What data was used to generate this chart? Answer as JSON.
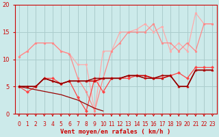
{
  "background_color": "#cceaea",
  "grid_color": "#aacccc",
  "xlabel": "Vent moyen/en rafales ( km/h )",
  "xlabel_color": "#cc0000",
  "tick_color": "#cc0000",
  "xlim": [
    -0.5,
    23.5
  ],
  "ylim": [
    0,
    20
  ],
  "yticks": [
    0,
    5,
    10,
    15,
    20
  ],
  "xticks": [
    0,
    1,
    2,
    3,
    4,
    5,
    6,
    7,
    8,
    9,
    10,
    11,
    12,
    13,
    14,
    15,
    16,
    17,
    18,
    19,
    20,
    21,
    22,
    23
  ],
  "series": [
    {
      "x": [
        0,
        1,
        2,
        3,
        4,
        5,
        6,
        7,
        8,
        9,
        10,
        11,
        12,
        13,
        14,
        15,
        16,
        17,
        18,
        19,
        20,
        21,
        22,
        23
      ],
      "y": [
        10.5,
        11.5,
        13,
        13,
        13,
        11.5,
        11.0,
        9.0,
        9.0,
        0.5,
        11.5,
        11.5,
        15.0,
        15.0,
        15.5,
        16.5,
        15.0,
        16.0,
        11.5,
        13.0,
        11.5,
        18.5,
        16.5,
        16.5
      ],
      "color": "#ffaaaa",
      "lw": 0.9,
      "marker": "o",
      "ms": 1.8,
      "zorder": 2
    },
    {
      "x": [
        0,
        1,
        2,
        3,
        4,
        5,
        6,
        7,
        8,
        9,
        10,
        11,
        12,
        13,
        14,
        15,
        16,
        17,
        18,
        19,
        20,
        21,
        22,
        23
      ],
      "y": [
        10.5,
        11.5,
        13,
        13,
        13,
        11.5,
        11.0,
        6.5,
        4.0,
        0.5,
        6.5,
        11.5,
        13.0,
        15.0,
        15.0,
        15.0,
        16.5,
        13.0,
        13.0,
        11.5,
        13.0,
        11.5,
        16.5,
        16.5
      ],
      "color": "#ff8888",
      "lw": 0.9,
      "marker": "o",
      "ms": 1.8,
      "zorder": 3
    },
    {
      "x": [
        0,
        1,
        2,
        3,
        4,
        5,
        6,
        7,
        8,
        9,
        10,
        11,
        12,
        13,
        14,
        15,
        16,
        17,
        18,
        19,
        20,
        21,
        22,
        23
      ],
      "y": [
        5.0,
        4.0,
        5.0,
        6.5,
        6.5,
        5.5,
        6.0,
        3.0,
        0.5,
        6.5,
        4.0,
        6.5,
        6.5,
        6.5,
        7.0,
        6.5,
        6.5,
        7.0,
        7.0,
        7.5,
        6.5,
        8.5,
        8.5,
        8.5
      ],
      "color": "#ff4444",
      "lw": 0.9,
      "marker": "D",
      "ms": 2.0,
      "zorder": 4
    },
    {
      "x": [
        0,
        1,
        2,
        3,
        4,
        5,
        6,
        7,
        8,
        9,
        10,
        11,
        12,
        13,
        14,
        15,
        16,
        17,
        18,
        19,
        20,
        21,
        22,
        23
      ],
      "y": [
        5.0,
        5.0,
        5.0,
        6.5,
        6.0,
        5.5,
        6.0,
        6.0,
        6.0,
        6.0,
        6.5,
        6.5,
        6.5,
        7.0,
        7.0,
        7.0,
        6.5,
        6.5,
        7.0,
        5.0,
        5.0,
        8.0,
        8.0,
        8.0
      ],
      "color": "#cc0000",
      "lw": 1.2,
      "marker": "^",
      "ms": 2.2,
      "zorder": 5
    },
    {
      "x": [
        0,
        1,
        2,
        3,
        4,
        5,
        6,
        7,
        8,
        9,
        10,
        11,
        12,
        13,
        14,
        15,
        16,
        17,
        18,
        19,
        20,
        21,
        22,
        23
      ],
      "y": [
        5.0,
        5.0,
        5.0,
        6.5,
        6.0,
        5.5,
        6.0,
        6.0,
        6.0,
        6.5,
        6.5,
        6.5,
        6.5,
        7.0,
        7.0,
        6.5,
        6.5,
        7.0,
        7.0,
        5.0,
        5.0,
        8.0,
        8.0,
        8.0
      ],
      "color": "#880000",
      "lw": 1.0,
      "marker": null,
      "ms": 0,
      "zorder": 6
    },
    {
      "x": [
        0,
        5,
        7,
        9,
        10
      ],
      "y": [
        5.0,
        3.5,
        2.5,
        1.0,
        0.5
      ],
      "color": "#990000",
      "lw": 0.9,
      "marker": null,
      "ms": 0,
      "zorder": 4
    }
  ],
  "arrow_color": "#cc0000",
  "axis_line_color": "#cc0000"
}
